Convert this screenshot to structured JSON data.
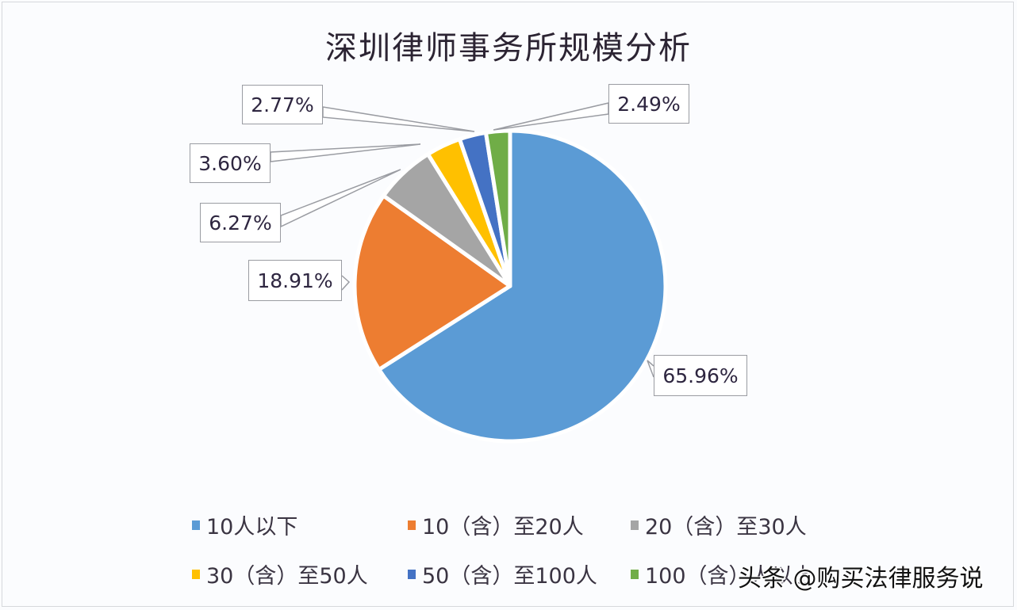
{
  "chart_data": {
    "type": "pie",
    "title": "深圳律师事务所规模分析",
    "start_angle": "12 o'clock, clockwise",
    "categories": [
      "10人以下",
      "10（含）至20人",
      "20（含）至30人",
      "30（含）至50人",
      "50（含）至100人",
      "100（含）人以上"
    ],
    "values": [
      65.96,
      18.91,
      6.27,
      3.6,
      2.77,
      2.49
    ],
    "data_labels": [
      "65.96%",
      "18.91%",
      "6.27%",
      "3.60%",
      "2.77%",
      "2.49%"
    ],
    "colors": [
      "#5b9bd5",
      "#ed7d31",
      "#a5a5a5",
      "#ffc000",
      "#4472c4",
      "#70ad47"
    ],
    "legend_position": "bottom",
    "unit": "%"
  },
  "title": "深圳律师事务所规模分析",
  "labels": {
    "s0": "65.96%",
    "s1": "18.91%",
    "s2": "6.27%",
    "s3": "3.60%",
    "s4": "2.77%",
    "s5": "2.49%"
  },
  "legend": {
    "items": [
      {
        "label": "10人以下",
        "color": "#5b9bd5"
      },
      {
        "label": "10（含）至20人",
        "color": "#ed7d31"
      },
      {
        "label": "20（含）至30人",
        "color": "#a5a5a5"
      },
      {
        "label": "30（含）至50人",
        "color": "#ffc000"
      },
      {
        "label": "50（含）至100人",
        "color": "#4472c4"
      },
      {
        "label": "100（含）人以上",
        "color": "#70ad47"
      }
    ]
  },
  "watermark": "头条 @购买法律服务说"
}
